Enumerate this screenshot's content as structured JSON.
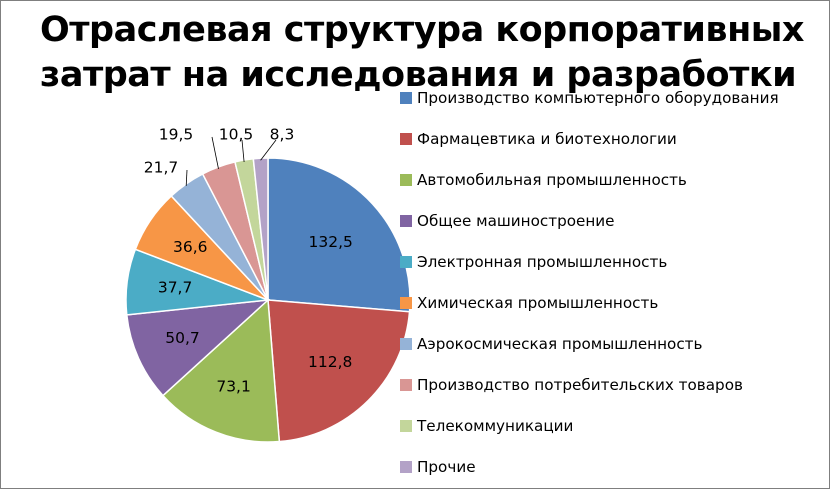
{
  "chart_data": {
    "type": "pie",
    "title_lines": [
      "Отраслевая структура корпоративных",
      "затрат на исследования и разработки"
    ],
    "categories": [
      "Производство компьютерного оборудования",
      "Фармацевтика и биотехнологии",
      "Автомобильная промышленность",
      "Общее машиностроение",
      "Электронная промышленность",
      "Химическая промышленность",
      "Аэрокосмическая промышленность",
      "Производство потребительских товаров",
      "Телекоммуникации",
      "Прочие"
    ],
    "values": [
      132.5,
      112.8,
      73.1,
      50.7,
      37.7,
      36.6,
      21.7,
      19.5,
      10.5,
      8.3
    ],
    "value_labels": [
      "132,5",
      "112,8",
      "73,1",
      "50,7",
      "37,7",
      "36,6",
      "21,7",
      "19,5",
      "10,5",
      "8,3"
    ],
    "colors": [
      "#4f81bd",
      "#c0504d",
      "#9bbb59",
      "#8064a2",
      "#4bacc6",
      "#f79646",
      "#95b3d7",
      "#d99694",
      "#c3d69b",
      "#b3a2c7"
    ],
    "legend_position": "right"
  }
}
